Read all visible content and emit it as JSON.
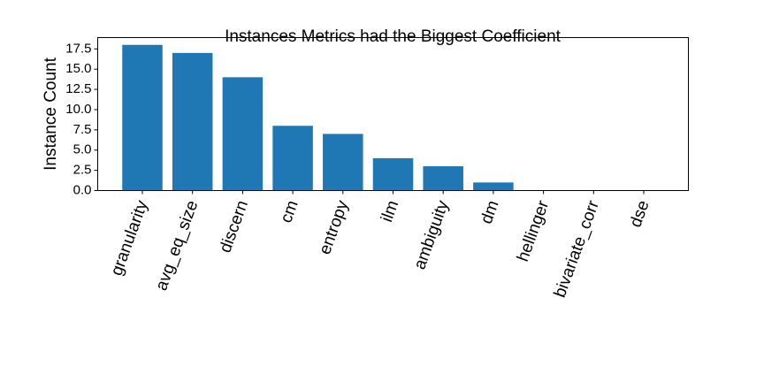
{
  "chart_data": {
    "type": "bar",
    "title": "Instances Metrics had the Biggest Coefficient",
    "xlabel": "",
    "ylabel": "Instance Count",
    "categories": [
      "granularity",
      "avg_eq_size",
      "discern",
      "cm",
      "entropy",
      "ilm",
      "ambiguity",
      "dm",
      "hellinger",
      "bivariate_corr",
      "dse"
    ],
    "values": [
      18,
      17,
      14,
      8,
      7,
      4,
      3,
      1,
      0,
      0,
      0
    ],
    "ylim": [
      0,
      18.9
    ],
    "yticks": [
      "0.0",
      "2.5",
      "5.0",
      "7.5",
      "10.0",
      "12.5",
      "15.0",
      "17.5"
    ],
    "grid": false,
    "legend": "none",
    "bar_color": "#1f77b4",
    "xtick_rotation_deg": 70
  }
}
